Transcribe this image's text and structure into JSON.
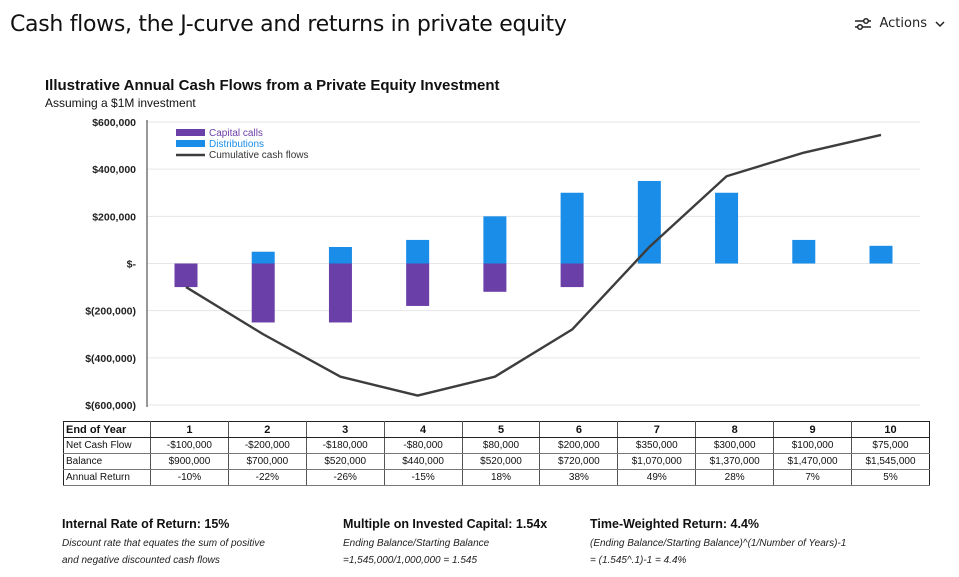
{
  "page": {
    "title": "Cash flows, the J-curve and returns in private equity",
    "actions_label": "Actions"
  },
  "chart_data": {
    "type": "bar",
    "title": "Illustrative Annual Cash Flows from a Private Equity Investment",
    "subtitle": "Assuming a $1M investment",
    "categories": [
      "1",
      "2",
      "3",
      "4",
      "5",
      "6",
      "7",
      "8",
      "9",
      "10"
    ],
    "ylim": [
      -600000,
      600000
    ],
    "yticks": [
      600000,
      400000,
      200000,
      0,
      -200000,
      -400000,
      -600000
    ],
    "ytick_labels": [
      "$600,000",
      "$400,000",
      "$200,000",
      "$-",
      "$(200,000)",
      "$(400,000)",
      "$(600,000)"
    ],
    "grid": true,
    "legend_position": "top-left",
    "series": [
      {
        "name": "Capital calls",
        "type": "bar",
        "color": "#6b3fa8",
        "values": [
          -100000,
          -250000,
          -250000,
          -180000,
          -120000,
          -100000,
          0,
          0,
          0,
          0
        ]
      },
      {
        "name": "Distributions",
        "type": "bar",
        "color": "#1a8de8",
        "values": [
          0,
          50000,
          70000,
          100000,
          200000,
          300000,
          350000,
          300000,
          100000,
          75000
        ]
      },
      {
        "name": "Cumulative cash flows",
        "type": "line",
        "color": "#3d3d3d",
        "values": [
          -100000,
          -300000,
          -480000,
          -560000,
          -480000,
          -280000,
          70000,
          370000,
          470000,
          545000
        ]
      }
    ]
  },
  "table": {
    "header_label": "End of Year",
    "years": [
      "1",
      "2",
      "3",
      "4",
      "5",
      "6",
      "7",
      "8",
      "9",
      "10"
    ],
    "rows": [
      {
        "label": "Net Cash Flow",
        "values": [
          "-$100,000",
          "-$200,000",
          "-$180,000",
          "-$80,000",
          "$80,000",
          "$200,000",
          "$350,000",
          "$300,000",
          "$100,000",
          "$75,000"
        ]
      },
      {
        "label": "Balance",
        "values": [
          "$900,000",
          "$700,000",
          "$520,000",
          "$440,000",
          "$520,000",
          "$720,000",
          "$1,070,000",
          "$1,370,000",
          "$1,470,000",
          "$1,545,000"
        ]
      },
      {
        "label": "Annual Return",
        "values": [
          "-10%",
          "-22%",
          "-26%",
          "-15%",
          "18%",
          "38%",
          "49%",
          "28%",
          "7%",
          "5%"
        ]
      }
    ]
  },
  "metrics": {
    "irr": {
      "title": "Internal Rate of Return: 15%",
      "line1": "Discount rate that equates the sum of positive",
      "line2": "and negative  discounted cash flows"
    },
    "moic": {
      "title": "Multiple on Invested Capital: 1.54x",
      "line1": "Ending Balance/Starting Balance",
      "line2": "=1,545,000/1,000,000 = 1.545"
    },
    "twr": {
      "title": "Time-Weighted Return: 4.4%",
      "line1": "(Ending Balance/Starting Balance)^(1/Number of Years)-1",
      "line2": "= (1.545^.1)-1 = 4.4%"
    }
  }
}
